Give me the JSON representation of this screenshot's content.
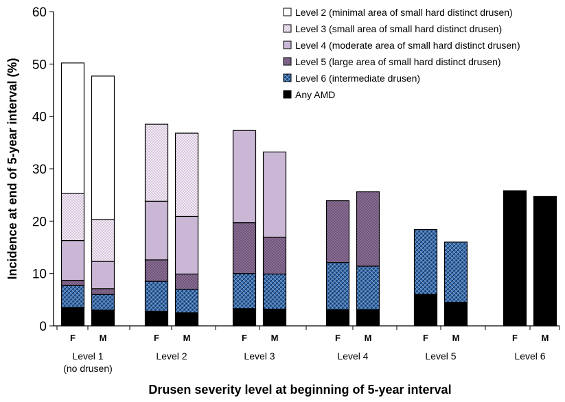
{
  "chart_data": {
    "type": "bar",
    "stacked": true,
    "xlabel": "Drusen severity level at beginning of 5-year interval",
    "ylabel": "Incidence at end of 5-year interval (%)",
    "ylim": [
      0,
      60
    ],
    "yticks": [
      0,
      10,
      20,
      30,
      40,
      50,
      60
    ],
    "groups": [
      {
        "label": "Level 1",
        "sublabel": "(no drusen)",
        "bars": [
          {
            "sex": "F",
            "values": [
              3.5,
              4.2,
              1.0,
              7.6,
              9.0,
              24.9
            ]
          },
          {
            "sex": "M",
            "values": [
              3.0,
              3.0,
              1.1,
              5.2,
              8.0,
              27.4
            ]
          }
        ]
      },
      {
        "label": "Level 2",
        "sublabel": "",
        "bars": [
          {
            "sex": "F",
            "values": [
              2.8,
              5.7,
              4.1,
              11.2,
              14.7,
              0
            ]
          },
          {
            "sex": "M",
            "values": [
              2.5,
              4.5,
              2.9,
              11.0,
              15.9,
              0
            ]
          }
        ]
      },
      {
        "label": "Level 3",
        "sublabel": "",
        "bars": [
          {
            "sex": "F",
            "values": [
              3.3,
              6.7,
              9.7,
              17.6,
              0,
              0
            ]
          },
          {
            "sex": "M",
            "values": [
              3.2,
              6.7,
              7.0,
              16.3,
              0,
              0
            ]
          }
        ]
      },
      {
        "label": "Level 4",
        "sublabel": "",
        "bars": [
          {
            "sex": "F",
            "values": [
              3.1,
              9.0,
              11.8,
              0,
              0,
              0
            ]
          },
          {
            "sex": "M",
            "values": [
              3.1,
              8.3,
              14.2,
              0,
              0,
              0
            ]
          }
        ]
      },
      {
        "label": "Level 5",
        "sublabel": "",
        "bars": [
          {
            "sex": "F",
            "values": [
              6.0,
              12.4,
              0,
              0,
              0,
              0
            ]
          },
          {
            "sex": "M",
            "values": [
              4.5,
              11.5,
              0,
              0,
              0,
              0
            ]
          }
        ]
      },
      {
        "label": "Level 6",
        "sublabel": "",
        "bars": [
          {
            "sex": "F",
            "values": [
              25.8,
              0,
              0,
              0,
              0,
              0
            ]
          },
          {
            "sex": "M",
            "values": [
              24.7,
              0,
              0,
              0,
              0,
              0
            ]
          }
        ]
      }
    ],
    "series_stack_order": [
      "Any AMD",
      "Level 6 (intermediate drusen)",
      "Level 5 (large area of small hard distinct drusen)",
      "Level 4 (moderate area of small hard distinct drusen)",
      "Level 3 (small area of small hard distinct drusen)",
      "Level 2 (minimal area of small hard distinct drusen)"
    ],
    "legend": [
      {
        "name": "Level 2 (minimal area of small hard distinct drusen)",
        "pattern": "white"
      },
      {
        "name": "Level 3 (small area of small hard distinct drusen)",
        "pattern": "dots"
      },
      {
        "name": "Level 4 (moderate area of small hard distinct drusen)",
        "pattern": "lavender"
      },
      {
        "name": "Level 5 (large area of small hard distinct drusen)",
        "pattern": "purple"
      },
      {
        "name": "Level 6 (intermediate drusen)",
        "pattern": "blue"
      },
      {
        "name": "Any AMD",
        "pattern": "black"
      }
    ],
    "legend_position": "top-right",
    "grid": false
  }
}
